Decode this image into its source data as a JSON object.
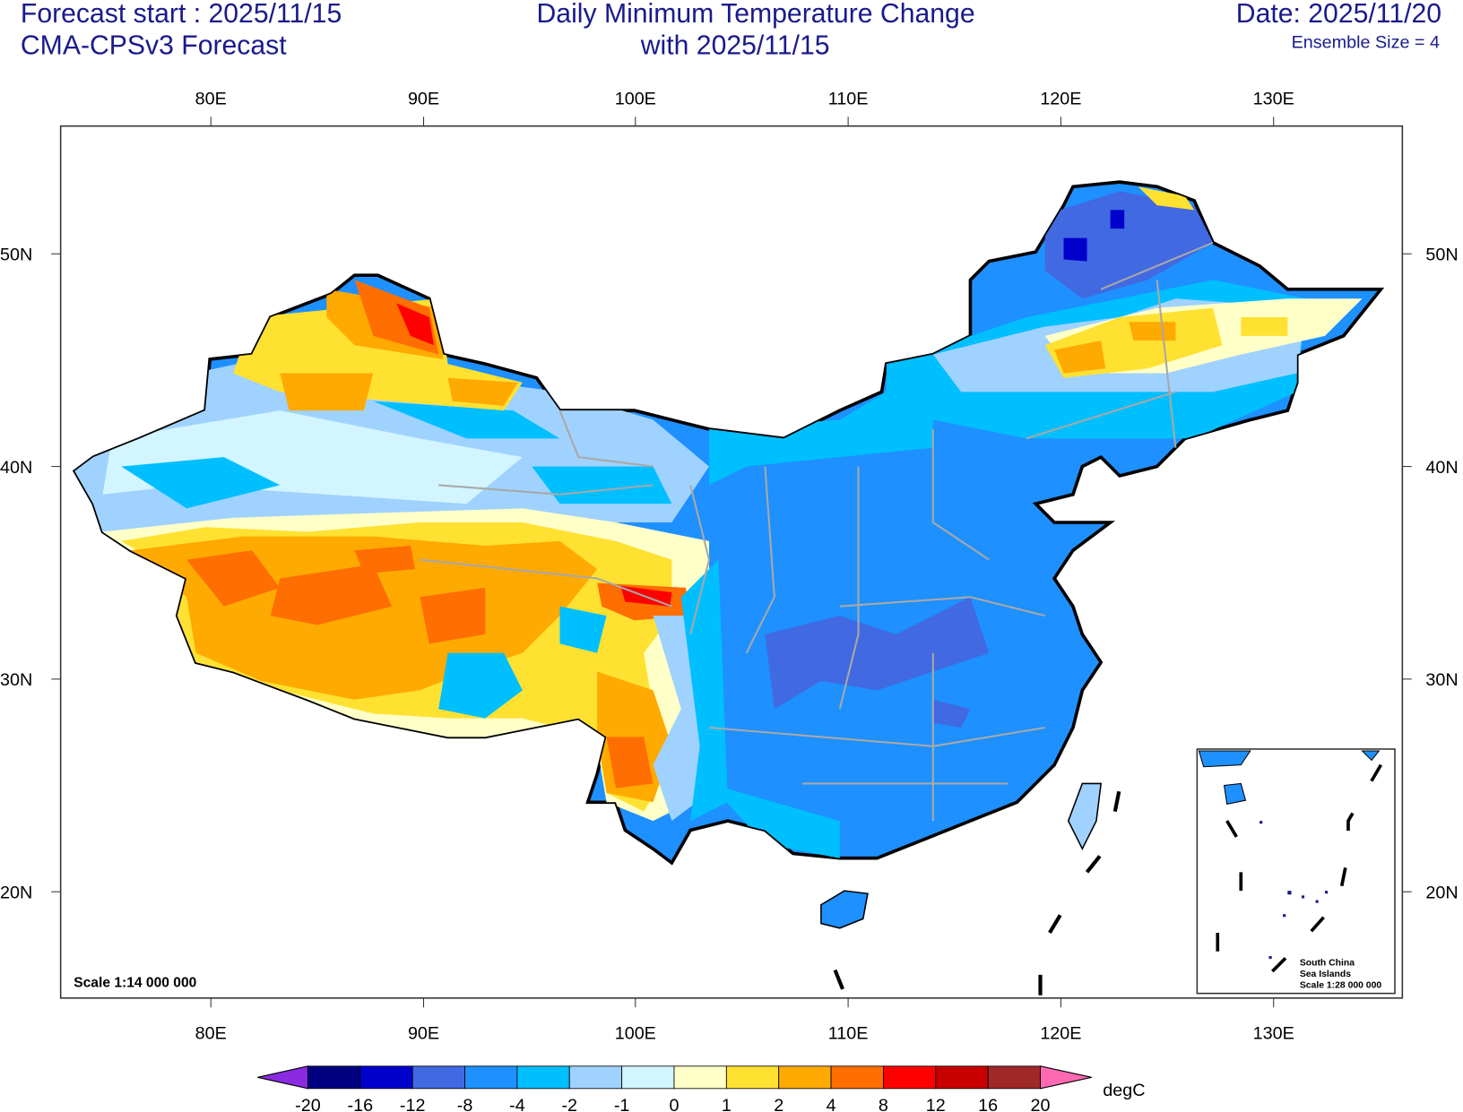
{
  "header": {
    "forecast_start": "Forecast start : 2025/11/15",
    "model": "CMA-CPSv3 Forecast",
    "title_line1": "Daily Minimum Temperature Change",
    "title_line2": "with 2025/11/15",
    "date": "Date: 2025/11/20",
    "ensemble": "Ensemble Size = 4"
  },
  "axes": {
    "lon_labels": [
      "80E",
      "90E",
      "100E",
      "110E",
      "120E",
      "130E"
    ],
    "lat_labels": [
      "50N",
      "40N",
      "30N",
      "20N"
    ]
  },
  "map": {
    "scale": "Scale 1:14 000 000",
    "inset_lines": [
      "South China",
      "Sea Islands",
      "Scale 1:28 000 000"
    ]
  },
  "colorbar": {
    "unit": "degC",
    "levels": [
      "-20",
      "-16",
      "-12",
      "-8",
      "-4",
      "-2",
      "-1",
      "0",
      "1",
      "2",
      "4",
      "8",
      "12",
      "16",
      "20"
    ],
    "colors": [
      "#000080",
      "#0000cd",
      "#4169e1",
      "#1e90ff",
      "#00bfff",
      "#a0d2ff",
      "#d2f5ff",
      "#ffffc8",
      "#ffe132",
      "#ffaa00",
      "#ff6e00",
      "#ff0000",
      "#c80000",
      "#a02828"
    ],
    "under_color": "#8a2be2",
    "over_color": "#ff69b4"
  }
}
